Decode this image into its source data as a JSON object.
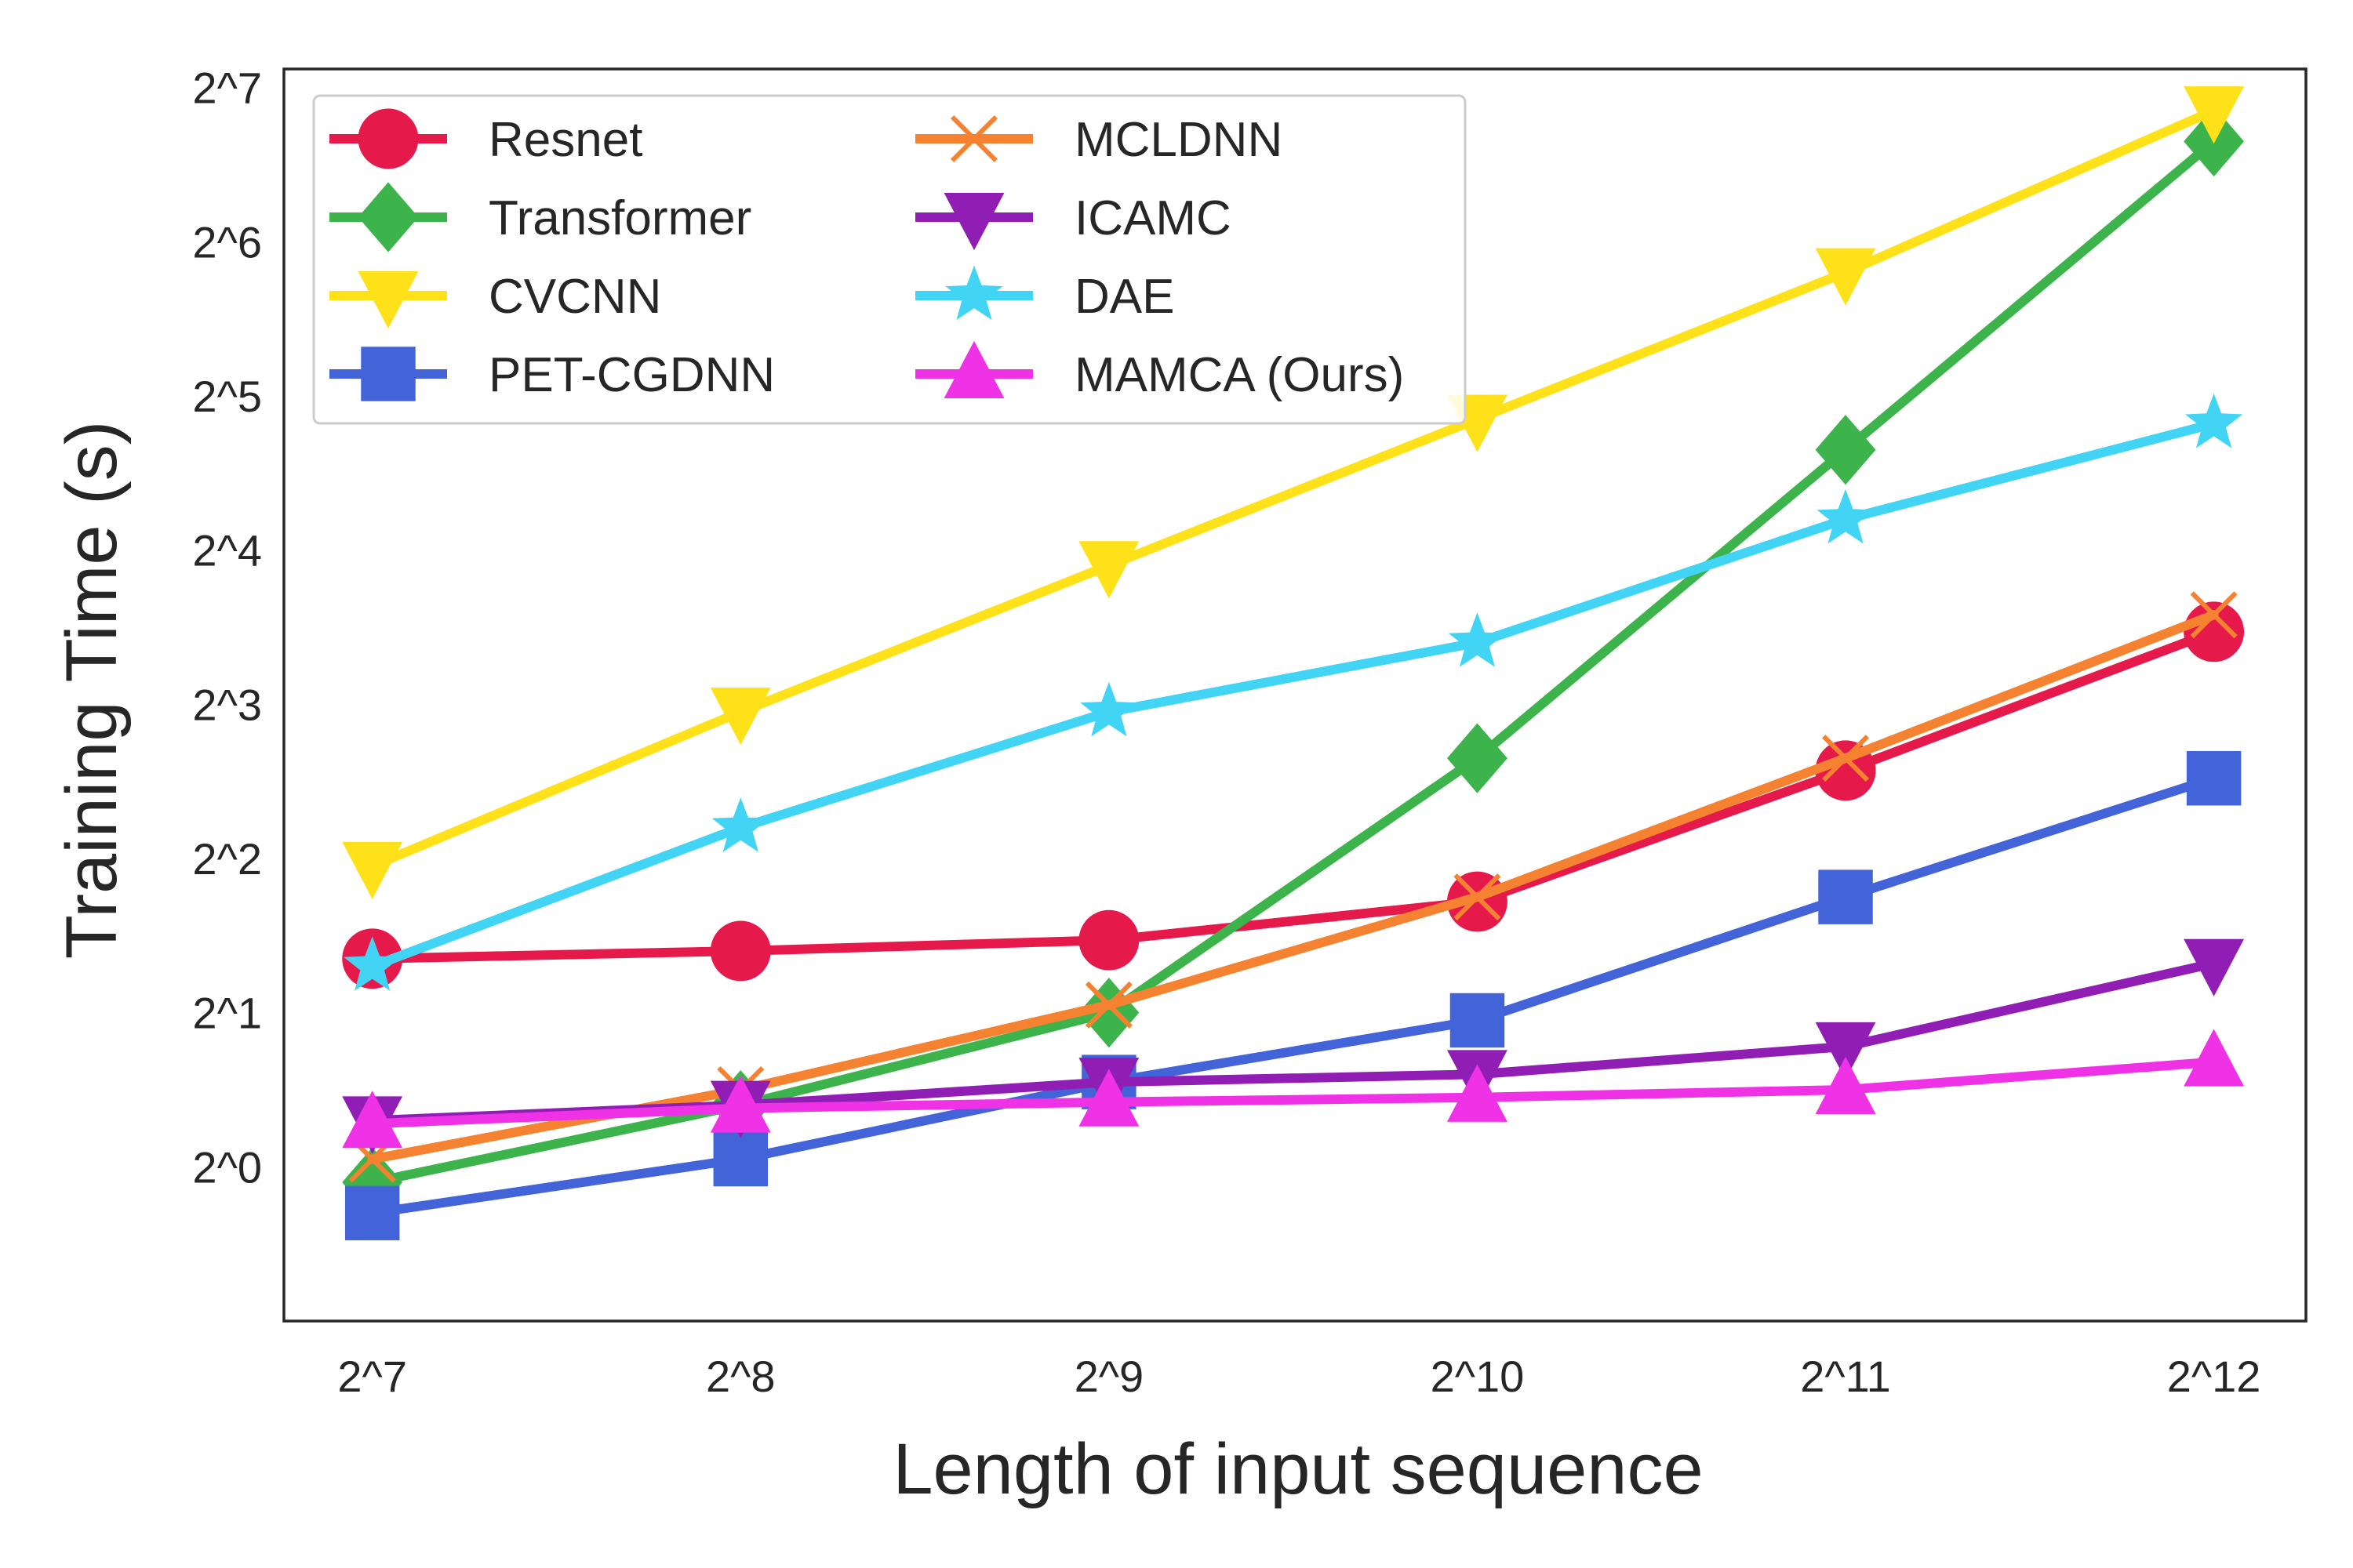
{
  "chart_data": {
    "type": "line",
    "title": "",
    "xlabel": "Length of input sequence",
    "ylabel": "Training Time (s)",
    "x_scale": "log2",
    "y_scale": "log2",
    "x_ticks": [
      "2^7",
      "2^8",
      "2^9",
      "2^10",
      "2^11",
      "2^12"
    ],
    "x_exponents": [
      7,
      8,
      9,
      10,
      11,
      12
    ],
    "y_ticks": [
      "2^0",
      "2^1",
      "2^2",
      "2^3",
      "2^4",
      "2^5",
      "2^6",
      "2^7"
    ],
    "y_tick_exponents": [
      0,
      1,
      2,
      3,
      4,
      5,
      6,
      7
    ],
    "xlim_exp": [
      6.76,
      12.25
    ],
    "ylim_exp": [
      -1.0,
      7.12
    ],
    "grid": false,
    "legend_position": "top-left",
    "legend_columns": 2,
    "series": [
      {
        "name": "Resnet",
        "color": "#e6194b",
        "marker": "circle",
        "y_exp": [
          1.35,
          1.4,
          1.47,
          1.72,
          2.57,
          3.47
        ]
      },
      {
        "name": "Transformer",
        "color": "#3cb44b",
        "marker": "diamond",
        "y_exp": [
          -0.1,
          0.4,
          1.0,
          2.65,
          4.65,
          6.65
        ]
      },
      {
        "name": "CVCNN",
        "color": "#ffe119",
        "marker": "triangle-down",
        "y_exp": [
          1.95,
          2.95,
          3.9,
          4.85,
          5.8,
          6.85
        ]
      },
      {
        "name": "PET-CGDNN",
        "color": "#4363d8",
        "marker": "square",
        "y_exp": [
          -0.3,
          0.05,
          0.55,
          0.95,
          1.75,
          2.52
        ]
      },
      {
        "name": "MCLDNN",
        "color": "#f58231",
        "marker": "x",
        "y_exp": [
          0.05,
          0.5,
          1.05,
          1.75,
          2.65,
          3.58
        ]
      },
      {
        "name": "ICAMC",
        "color": "#911eb4",
        "marker": "triangle-down",
        "y_exp": [
          0.3,
          0.4,
          0.55,
          0.6,
          0.78,
          1.32
        ]
      },
      {
        "name": "DAE",
        "color": "#42d4f4",
        "marker": "star",
        "y_exp": [
          1.3,
          2.2,
          2.95,
          3.4,
          4.2,
          4.82
        ]
      },
      {
        "name": "MAMCA (Ours)",
        "color": "#f032e6",
        "marker": "triangle-up",
        "y_exp": [
          0.28,
          0.38,
          0.42,
          0.45,
          0.5,
          0.68
        ]
      }
    ]
  }
}
